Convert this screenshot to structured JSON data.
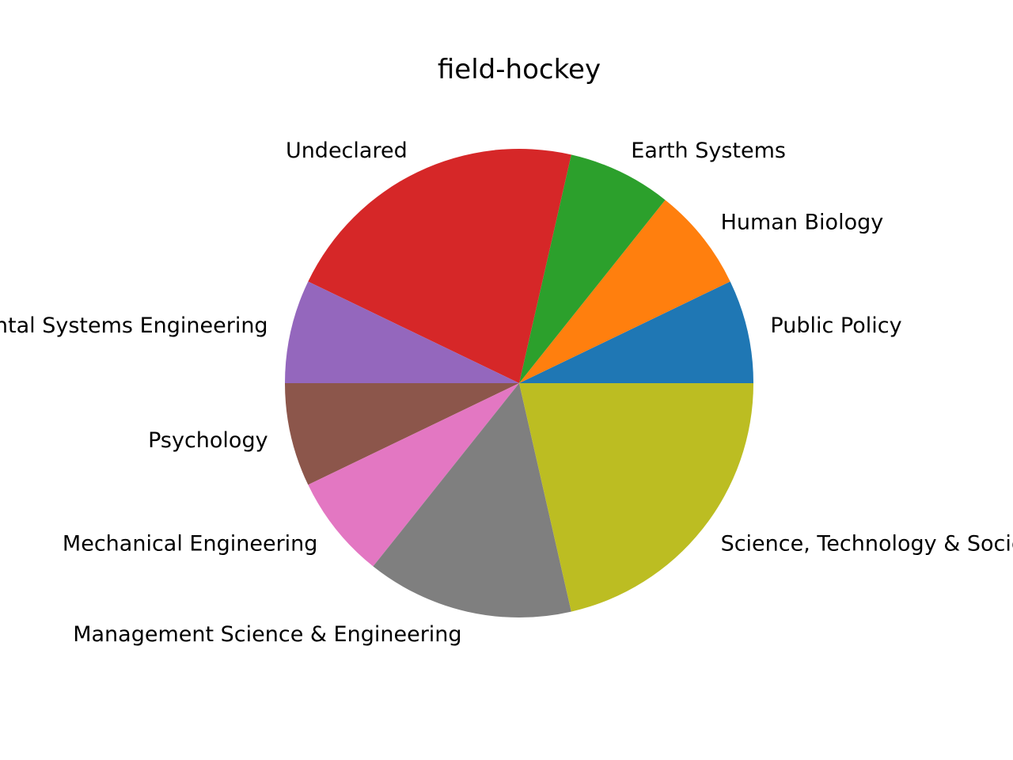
{
  "chart_data": {
    "type": "pie",
    "title": "field-hockey",
    "start_angle_deg": 0,
    "direction": "counterclockwise",
    "slices": [
      {
        "label": "Public Policy",
        "value": 1,
        "color": "#1f77b4"
      },
      {
        "label": "Human Biology",
        "value": 1,
        "color": "#ff7f0e"
      },
      {
        "label": "Earth Systems",
        "value": 1,
        "color": "#2ca02c"
      },
      {
        "label": "Undeclared",
        "value": 3,
        "color": "#d62728"
      },
      {
        "label": "Environmental Systems Engineering",
        "value": 1,
        "color": "#9467bd"
      },
      {
        "label": "Psychology",
        "value": 1,
        "color": "#8c564b"
      },
      {
        "label": "Mechanical Engineering",
        "value": 1,
        "color": "#e377c2"
      },
      {
        "label": "Management Science & Engineering",
        "value": 2,
        "color": "#7f7f7f"
      },
      {
        "label": "Science, Technology & Society",
        "value": 3,
        "color": "#bcbd22"
      }
    ]
  }
}
